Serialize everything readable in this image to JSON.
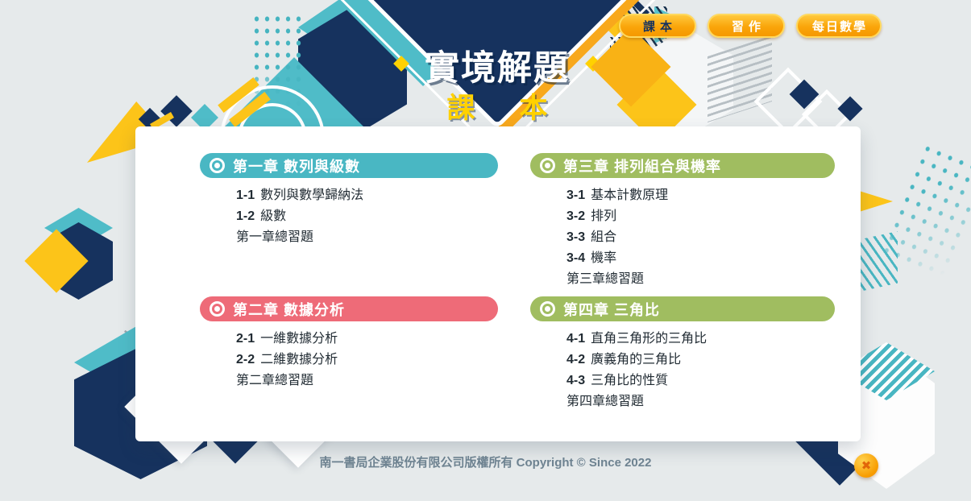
{
  "logo": {
    "title": "實境解題",
    "subtitle": "課本",
    "accent_color": "#ffd100"
  },
  "nav": {
    "buttons": [
      {
        "label": "課本",
        "text_color": "#16325e",
        "active": true
      },
      {
        "label": "習作",
        "text_color": "#ffffff",
        "active": false
      },
      {
        "label": "每日數學",
        "text_color": "#ffffff",
        "active": false
      }
    ]
  },
  "chapters": [
    {
      "title": "第一章 數列與級數",
      "color": "#49b7c3",
      "column": "left",
      "items": [
        {
          "num": "1-1",
          "label": "數列與數學歸納法"
        },
        {
          "num": "1-2",
          "label": "級數"
        },
        {
          "num": "",
          "label": "第一章總習題"
        }
      ]
    },
    {
      "title": "第二章 數據分析",
      "color": "#ee6b78",
      "column": "left",
      "items": [
        {
          "num": "2-1",
          "label": "一維數據分析"
        },
        {
          "num": "2-2",
          "label": "二維數據分析"
        },
        {
          "num": "",
          "label": "第二章總習題"
        }
      ]
    },
    {
      "title": "第三章 排列組合與機率",
      "color": "#a0bd60",
      "column": "right",
      "items": [
        {
          "num": "3-1",
          "label": "基本計數原理"
        },
        {
          "num": "3-2",
          "label": "排列"
        },
        {
          "num": "3-3",
          "label": "組合"
        },
        {
          "num": "3-4",
          "label": "機率"
        },
        {
          "num": "",
          "label": "第三章總習題"
        }
      ]
    },
    {
      "title": "第四章 三角比",
      "color": "#a0bd60",
      "column": "right",
      "items": [
        {
          "num": "4-1",
          "label": "直角三角形的三角比"
        },
        {
          "num": "4-2",
          "label": "廣義角的三角比"
        },
        {
          "num": "4-3",
          "label": "三角比的性質"
        },
        {
          "num": "",
          "label": "第四章總習題"
        }
      ]
    }
  ],
  "footer": {
    "copyright": "南一書局企業股份有限公司版權所有 Copyright © Since 2022"
  },
  "close": {
    "glyph": "✖"
  }
}
